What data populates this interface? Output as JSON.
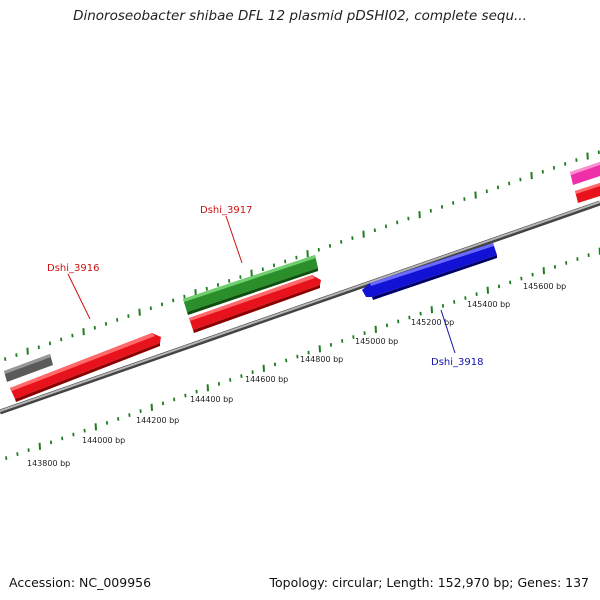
{
  "title": "Dinoroseobacter shibae DFL 12 plasmid pDSHI02, complete sequ...",
  "footer": {
    "accession": "Accession: NC_009956",
    "summary": "Topology: circular; Length: 152,970 bp; Genes: 137"
  },
  "colors": {
    "backbone": "#8c8c8c",
    "tick": "#1e7d1e",
    "red_gene": "#e8121c",
    "green_gene": "#2a8f2a",
    "blue_gene": "#1212d6",
    "gray_gene": "#5a5a5a",
    "pink_gene": "#ee2fa8",
    "red_label": "#cc1111",
    "blue_label": "#1111aa"
  },
  "bp_labels": [
    "143800 bp",
    "144000 bp",
    "144200 bp",
    "144400 bp",
    "144600 bp",
    "144800 bp",
    "145000 bp",
    "145200 bp",
    "145400 bp",
    "145600 bp"
  ],
  "gene_labels": [
    {
      "text": "Dshi_3916",
      "color": "red"
    },
    {
      "text": "Dshi_3917",
      "color": "red"
    },
    {
      "text": "Dshi_3918",
      "color": "blue"
    }
  ]
}
